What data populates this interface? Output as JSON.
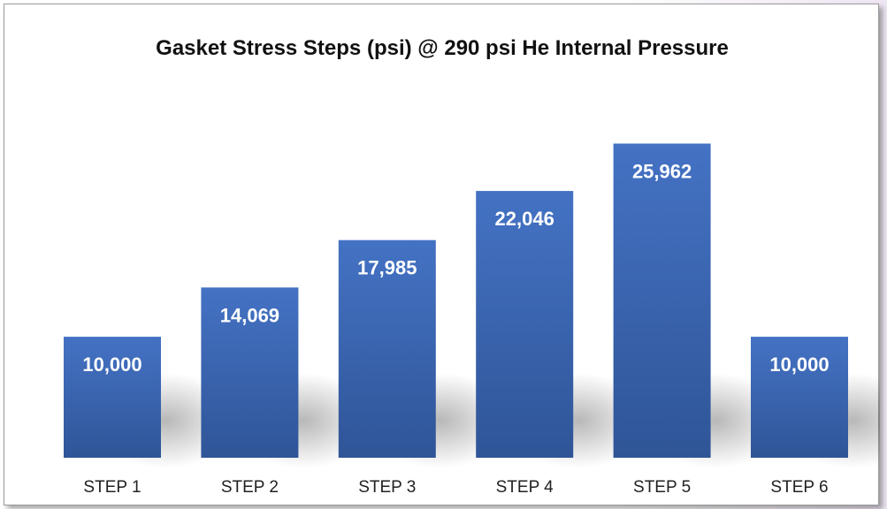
{
  "chart_data": {
    "type": "bar",
    "title": "Gasket Stress Steps (psi) @ 290 psi He Internal Pressure",
    "categories": [
      "STEP 1",
      "STEP 2",
      "STEP 3",
      "STEP 4",
      "STEP 5",
      "STEP 6"
    ],
    "values": [
      10000,
      14069,
      17985,
      22046,
      25962,
      10000
    ],
    "data_labels": [
      "10,000",
      "14,069",
      "17,985",
      "22,046",
      "25,962",
      "10,000"
    ],
    "xlabel": "",
    "ylabel": "",
    "ylim": [
      0,
      36000
    ],
    "grid": false,
    "legend": "none",
    "bar_color_top": "#4472c4",
    "bar_color_bottom": "#2f5597"
  }
}
